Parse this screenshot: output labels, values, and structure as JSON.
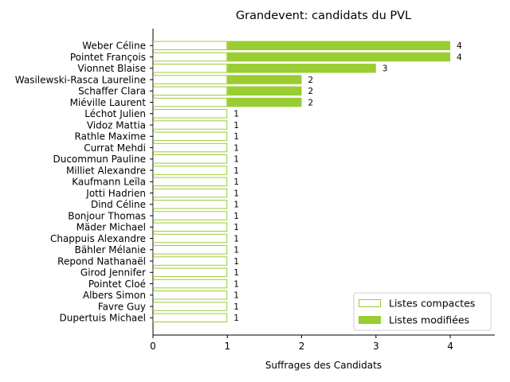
{
  "chart_data": {
    "type": "bar",
    "orientation": "horizontal",
    "stacked": true,
    "title": "Grandevent: candidats du PVL",
    "xlabel": "Suffrages des Candidats",
    "ylabel": "",
    "xlim": [
      0,
      4.6
    ],
    "xticks": [
      0,
      1,
      2,
      3,
      4
    ],
    "grid": false,
    "legend_position": "lower-right",
    "colors": {
      "bar": "#9acd32",
      "background": "#ffffff",
      "axis": "#000000"
    },
    "categories": [
      "Weber Céline",
      "Pointet François",
      "Vionnet Blaise",
      "Wasilewski-Rasca Laureline",
      "Schaffer Clara",
      "Miéville Laurent",
      "Léchot Julien",
      "Vidoz Mattia",
      "Rathle Maxime",
      "Currat Mehdi",
      "Ducommun Pauline",
      "Milliet Alexandre",
      "Kaufmann Leïla",
      "Jotti Hadrien",
      "Dind Céline",
      "Bonjour Thomas",
      "Mäder Michael",
      "Chappuis Alexandre",
      "Bähler Mélanie",
      "Repond Nathanaël",
      "Girod Jennifer",
      "Pointet Cloé",
      "Albers Simon",
      "Favre Guy",
      "Dupertuis Michael"
    ],
    "series": [
      {
        "name": "Listes compactes",
        "style": "outline",
        "values": [
          1,
          1,
          1,
          1,
          1,
          1,
          1,
          1,
          1,
          1,
          1,
          1,
          1,
          1,
          1,
          1,
          1,
          1,
          1,
          1,
          1,
          1,
          1,
          1,
          1
        ]
      },
      {
        "name": "Listes modifiées",
        "style": "filled",
        "values": [
          3,
          3,
          2,
          1,
          1,
          1,
          0,
          0,
          0,
          0,
          0,
          0,
          0,
          0,
          0,
          0,
          0,
          0,
          0,
          0,
          0,
          0,
          0,
          0,
          0
        ]
      }
    ],
    "totals": [
      4,
      4,
      3,
      2,
      2,
      2,
      1,
      1,
      1,
      1,
      1,
      1,
      1,
      1,
      1,
      1,
      1,
      1,
      1,
      1,
      1,
      1,
      1,
      1,
      1
    ]
  }
}
